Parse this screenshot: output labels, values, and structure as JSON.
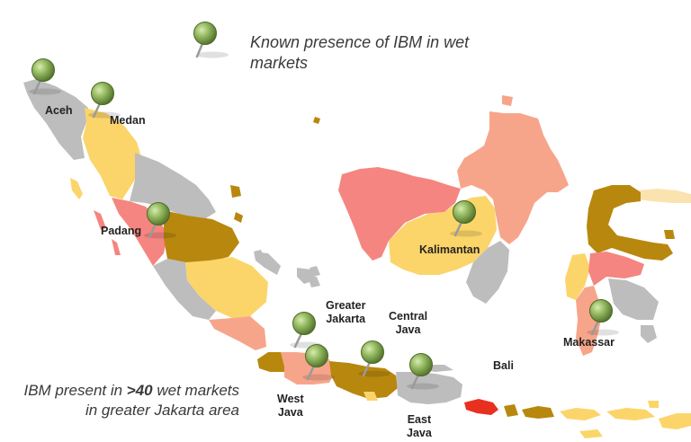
{
  "legend": {
    "text": "Known presence of IBM in wet markets"
  },
  "note": {
    "prefix": "IBM present in ",
    "highlight": ">40",
    "suffix": " wet markets in greater Jakarta area"
  },
  "labels": {
    "aceh": "Aceh",
    "medan": "Medan",
    "padang": "Padang",
    "kalimantan": "Kalimantan",
    "greater_jakarta_line1": "Greater",
    "greater_jakarta_line2": "Jakarta",
    "central_java_line1": "Central",
    "central_java_line2": "Java",
    "bali": "Bali",
    "makassar": "Makassar",
    "west_java_line1": "West",
    "west_java_line2": "Java",
    "east_java_line1": "East",
    "east_java_line2": "Java"
  },
  "colors": {
    "grey": "#bdbdbd",
    "light_yellow": "#fbd56a",
    "dark_gold": "#b8870e",
    "salmon": "#f7a58a",
    "coral": "#f58580",
    "red": "#e8301f",
    "pin_green": "#8db15a"
  }
}
